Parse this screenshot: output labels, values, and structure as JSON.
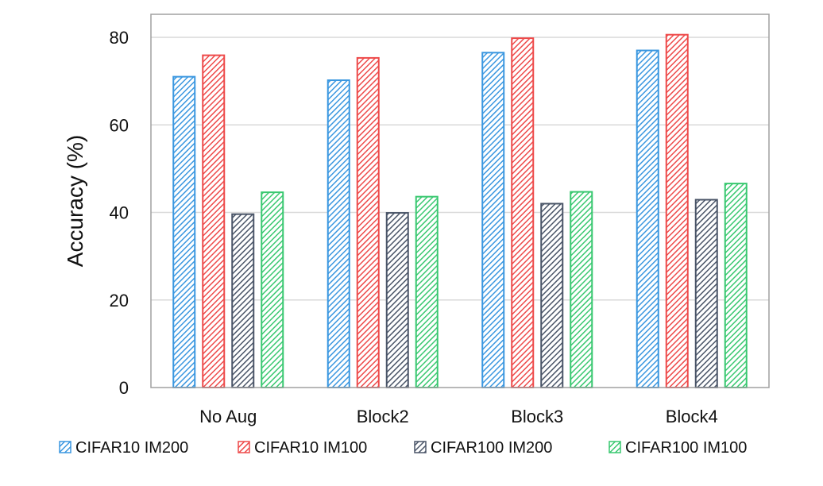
{
  "chart_data": {
    "type": "bar",
    "title": "",
    "xlabel": "",
    "ylabel": "Accuracy (%)",
    "ylim": [
      0,
      80
    ],
    "yticks": [
      0,
      20,
      40,
      60,
      80
    ],
    "grid": true,
    "legend_position": "bottom",
    "categories": [
      "No Aug",
      "Block2",
      "Block3",
      "Block4"
    ],
    "series": [
      {
        "name": "CIFAR10 IM200",
        "color": "#3a97e0",
        "values": [
          71.0,
          70.2,
          76.5,
          77.0
        ]
      },
      {
        "name": "CIFAR10 IM100",
        "color": "#ee4a4a",
        "values": [
          75.9,
          75.3,
          79.8,
          80.6
        ]
      },
      {
        "name": "CIFAR100 IM200",
        "color": "#4a5568",
        "values": [
          39.6,
          39.9,
          42.0,
          42.9
        ]
      },
      {
        "name": "CIFAR100 IM100",
        "color": "#39c870",
        "values": [
          44.6,
          43.6,
          44.7,
          46.6
        ]
      }
    ]
  }
}
